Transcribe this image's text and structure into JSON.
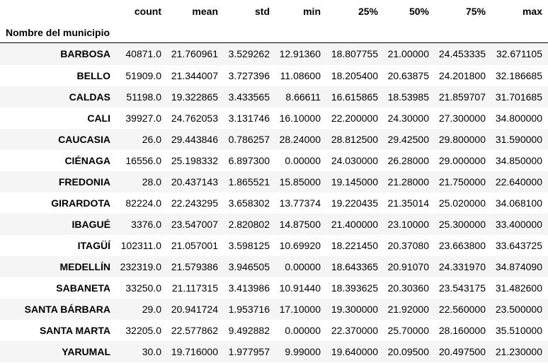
{
  "table": {
    "index_name": "Nombre del municipio",
    "columns": [
      "count",
      "mean",
      "std",
      "min",
      "25%",
      "50%",
      "75%",
      "max"
    ],
    "rows": [
      {
        "name": "BARBOSA",
        "values": [
          "40871.0",
          "21.760961",
          "3.529262",
          "12.91360",
          "18.807755",
          "21.00000",
          "24.453335",
          "32.671105"
        ]
      },
      {
        "name": "BELLO",
        "values": [
          "51909.0",
          "21.344007",
          "3.727396",
          "11.08600",
          "18.205400",
          "20.63875",
          "24.201800",
          "32.186685"
        ]
      },
      {
        "name": "CALDAS",
        "values": [
          "51198.0",
          "19.322865",
          "3.433565",
          "8.66611",
          "16.615865",
          "18.53985",
          "21.859707",
          "31.701685"
        ]
      },
      {
        "name": "CALI",
        "values": [
          "39927.0",
          "24.762053",
          "3.131746",
          "16.10000",
          "22.200000",
          "24.30000",
          "27.300000",
          "34.800000"
        ]
      },
      {
        "name": "CAUCASIA",
        "values": [
          "26.0",
          "29.443846",
          "0.786257",
          "28.24000",
          "28.812500",
          "29.42500",
          "29.800000",
          "31.590000"
        ]
      },
      {
        "name": "CIÉNAGA",
        "values": [
          "16556.0",
          "25.198332",
          "6.897300",
          "0.00000",
          "24.030000",
          "26.28000",
          "29.000000",
          "34.850000"
        ]
      },
      {
        "name": "FREDONIA",
        "values": [
          "28.0",
          "20.437143",
          "1.865521",
          "15.85000",
          "19.145000",
          "21.28000",
          "21.750000",
          "22.640000"
        ]
      },
      {
        "name": "GIRARDOTA",
        "values": [
          "82224.0",
          "22.243295",
          "3.658302",
          "13.77374",
          "19.220435",
          "21.35014",
          "25.020000",
          "34.068100"
        ]
      },
      {
        "name": "IBAGUÉ",
        "values": [
          "3376.0",
          "23.547007",
          "2.820802",
          "14.87500",
          "21.400000",
          "23.10000",
          "25.300000",
          "33.400000"
        ]
      },
      {
        "name": "ITAGÜÍ",
        "values": [
          "102311.0",
          "21.057001",
          "3.598125",
          "10.69920",
          "18.221450",
          "20.37080",
          "23.663800",
          "33.643725"
        ]
      },
      {
        "name": "MEDELLÍN",
        "values": [
          "232319.0",
          "21.579386",
          "3.946505",
          "0.00000",
          "18.643365",
          "20.91070",
          "24.331970",
          "34.874090"
        ]
      },
      {
        "name": "SABANETA",
        "values": [
          "33250.0",
          "21.117315",
          "3.413986",
          "10.91440",
          "18.393625",
          "20.30360",
          "23.543175",
          "31.482600"
        ]
      },
      {
        "name": "SANTA BÁRBARA",
        "values": [
          "29.0",
          "20.941724",
          "1.953716",
          "17.10000",
          "19.300000",
          "21.92000",
          "22.560000",
          "23.500000"
        ]
      },
      {
        "name": "SANTA MARTA",
        "values": [
          "32205.0",
          "22.577862",
          "9.492882",
          "0.00000",
          "22.370000",
          "25.70000",
          "28.160000",
          "35.510000"
        ]
      },
      {
        "name": "YARUMAL",
        "values": [
          "30.0",
          "19.716000",
          "1.977957",
          "9.99000",
          "19.640000",
          "20.09500",
          "20.497500",
          "21.230000"
        ]
      }
    ]
  }
}
